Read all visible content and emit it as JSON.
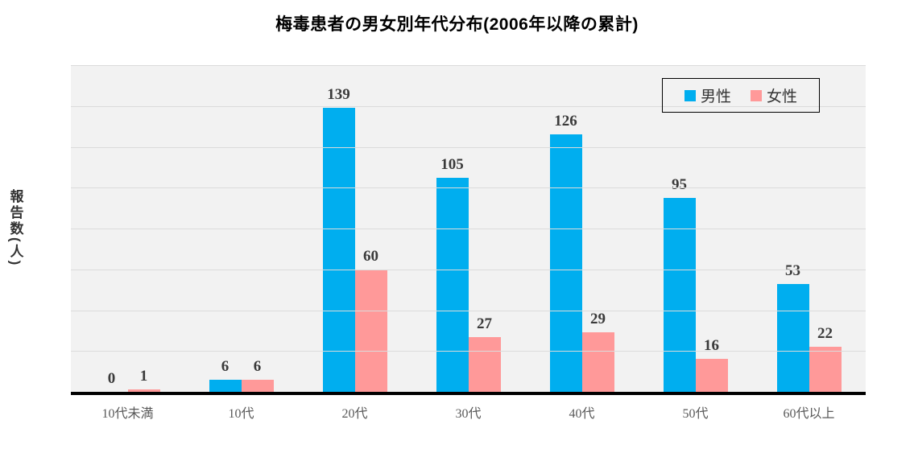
{
  "chart_data": {
    "type": "bar",
    "title": "梅毒患者の男女別年代分布(2006年以降の累計)",
    "ylabel": "報告数(人)",
    "xlabel": "",
    "categories": [
      "10代未満",
      "10代",
      "20代",
      "30代",
      "40代",
      "50代",
      "60代以上"
    ],
    "series": [
      {
        "name": "男性",
        "color": "#00AEEF",
        "values": [
          0,
          6,
          139,
          105,
          126,
          95,
          53
        ]
      },
      {
        "name": "女性",
        "color": "#FF9999",
        "values": [
          1,
          6,
          60,
          27,
          29,
          16,
          22
        ]
      }
    ],
    "ylim": [
      0,
      160
    ],
    "yticks": [
      0,
      20,
      40,
      60,
      80,
      100,
      120,
      140,
      160
    ],
    "grid": true,
    "legend_position": "top-right",
    "colors": {
      "plot_background": "#F2F2F2",
      "gridline": "#DBDBDB",
      "axis_line": "#000000",
      "tick_text": "#6E6E6E",
      "value_label_text": "#3A3A3A"
    }
  }
}
